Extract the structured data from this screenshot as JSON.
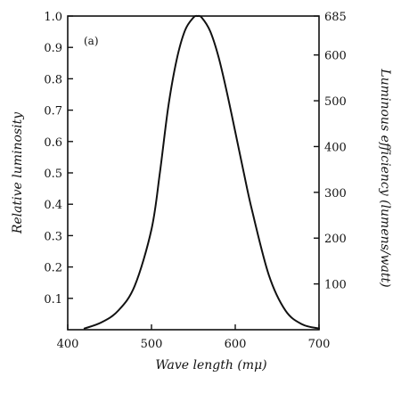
{
  "chart_data": {
    "type": "line",
    "panel_label": "(a)",
    "xlabel": "Wave length (mμ)",
    "ylabel": "Relative luminosity",
    "y2label": "Luminous efficiency (lumens/watt)",
    "xlim": [
      400,
      700
    ],
    "ylim": [
      0,
      1.0
    ],
    "y2lim": [
      0,
      685
    ],
    "x_ticks": [
      400,
      500,
      600,
      700
    ],
    "y_ticks": [
      0.1,
      0.2,
      0.3,
      0.4,
      0.5,
      0.6,
      0.7,
      0.8,
      0.9,
      1.0
    ],
    "y_tick_labels": [
      "0.1",
      "0.2",
      "0.3",
      "0.4",
      "0.5",
      "0.6",
      "0.7",
      "0.8",
      "0.9",
      "1.0"
    ],
    "y2_ticks": [
      100,
      200,
      300,
      400,
      500,
      600,
      685
    ],
    "y2_tick_labels": [
      "100",
      "200",
      "300",
      "400",
      "500",
      "600",
      "685"
    ],
    "grid": false,
    "series": [
      {
        "x": [
          420,
          440,
          460,
          480,
          500,
          510,
          520,
          530,
          540,
          550,
          555,
          560,
          570,
          580,
          590,
          600,
          610,
          620,
          640,
          660,
          680,
          700
        ],
        "values": [
          0.004,
          0.023,
          0.06,
          0.14,
          0.32,
          0.5,
          0.71,
          0.86,
          0.954,
          0.995,
          1.0,
          0.995,
          0.952,
          0.87,
          0.757,
          0.631,
          0.503,
          0.381,
          0.175,
          0.061,
          0.017,
          0.004
        ]
      }
    ]
  }
}
